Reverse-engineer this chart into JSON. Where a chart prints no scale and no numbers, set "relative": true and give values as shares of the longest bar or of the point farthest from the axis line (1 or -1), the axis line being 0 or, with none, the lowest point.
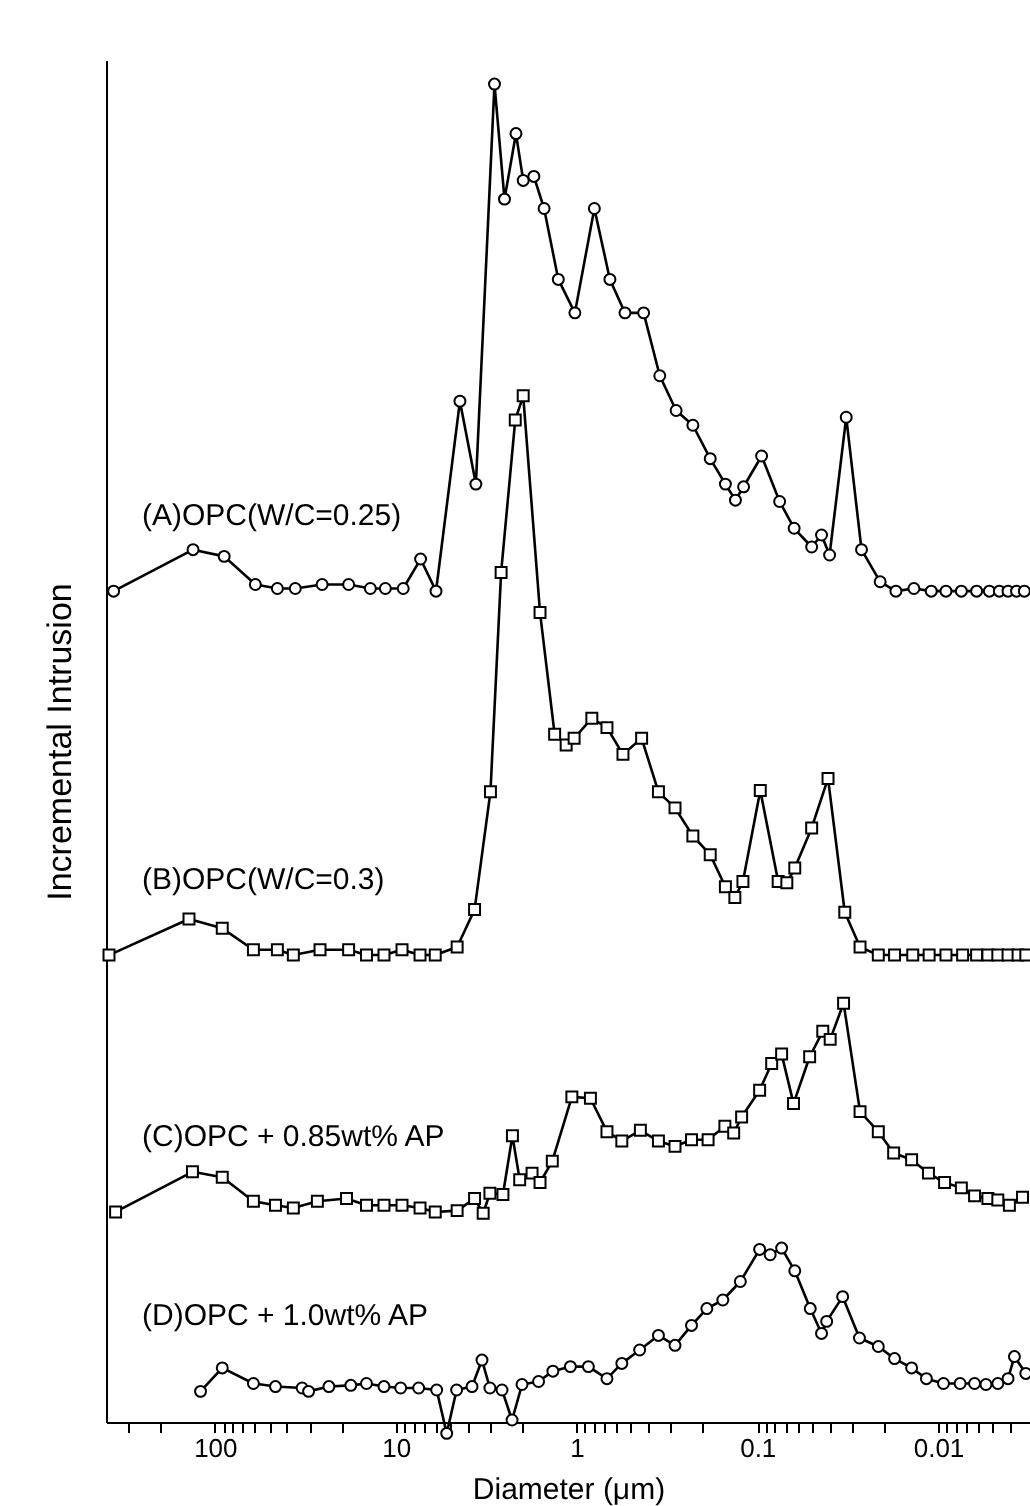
{
  "chart_data": {
    "type": "line",
    "relative": true,
    "xlabel": "Diameter (μm)",
    "ylabel": "Incremental Intrusion",
    "log": "x",
    "grid": false,
    "xlim": [
      400,
      0.0031
    ],
    "xticks": [
      {
        "value": 300,
        "label": null
      },
      {
        "value": 200,
        "label": null
      },
      100,
      {
        "value": 90,
        "label": null
      },
      {
        "value": 80,
        "label": null
      },
      {
        "value": 70,
        "label": null
      },
      {
        "value": 60,
        "label": null
      },
      {
        "value": 50,
        "label": null
      },
      {
        "value": 40,
        "label": null
      },
      {
        "value": 30,
        "label": null
      },
      {
        "value": 20,
        "label": null
      },
      10,
      {
        "value": 9,
        "label": null
      },
      {
        "value": 8,
        "label": null
      },
      {
        "value": 7,
        "label": null
      },
      {
        "value": 6,
        "label": null
      },
      {
        "value": 5,
        "label": null
      },
      {
        "value": 4,
        "label": null
      },
      {
        "value": 3,
        "label": null
      },
      {
        "value": 2,
        "label": null
      },
      1,
      {
        "value": 0.9,
        "label": null
      },
      {
        "value": 0.8,
        "label": null
      },
      {
        "value": 0.7,
        "label": null
      },
      {
        "value": 0.6,
        "label": null
      },
      {
        "value": 0.5,
        "label": null
      },
      {
        "value": 0.4,
        "label": null
      },
      {
        "value": 0.3,
        "label": null
      },
      {
        "value": 0.2,
        "label": null
      },
      0.1,
      {
        "value": 0.09,
        "label": null
      },
      {
        "value": 0.08,
        "label": null
      },
      {
        "value": 0.07,
        "label": null
      },
      {
        "value": 0.06,
        "label": null
      },
      {
        "value": 0.05,
        "label": null
      },
      {
        "value": 0.04,
        "label": null
      },
      {
        "value": 0.03,
        "label": null
      },
      {
        "value": 0.02,
        "label": null
      },
      0.01,
      {
        "value": 0.009,
        "label": null
      },
      {
        "value": 0.008,
        "label": null
      },
      {
        "value": 0.007,
        "label": null
      },
      {
        "value": 0.006,
        "label": null
      },
      {
        "value": 0.005,
        "label": null
      },
      {
        "value": 0.004,
        "label": null
      }
    ],
    "series": [
      {
        "name": "(A)OPC(W/C=0.25)",
        "color": "#000000",
        "marker": "circle",
        "x": [
          363,
          132,
          88.8,
          59.7,
          45.1,
          35.9,
          25.5,
          18.2,
          13.8,
          11.4,
          9.08,
          7.28,
          5.98,
          4.41,
          3.6,
          2.84,
          2.5,
          2.16,
          1.97,
          1.72,
          1.51,
          1.26,
          1.02,
          0.796,
          0.653,
          0.539,
          0.425,
          0.346,
          0.281,
          0.227,
          0.182,
          0.15,
          0.132,
          0.119,
          0.0946,
          0.0752,
          0.0625,
          0.05,
          0.0441,
          0.0398,
          0.0322,
          0.0265,
          0.0209,
          0.0171,
          0.0136,
          0.0109,
          0.00904,
          0.00743,
          0.00612,
          0.0052,
          0.00458,
          0.0041,
          0.00368,
          0.00333
        ],
        "values": [
          0.621,
          0.652,
          0.647,
          0.626,
          0.623,
          0.623,
          0.626,
          0.626,
          0.623,
          0.623,
          0.623,
          0.645,
          0.621,
          0.763,
          0.701,
          1,
          0.914,
          0.963,
          0.928,
          0.931,
          0.907,
          0.854,
          0.829,
          0.907,
          0.854,
          0.829,
          0.829,
          0.782,
          0.756,
          0.745,
          0.72,
          0.701,
          0.689,
          0.699,
          0.722,
          0.688,
          0.668,
          0.654,
          0.663,
          0.648,
          0.751,
          0.652,
          0.628,
          0.621,
          0.623,
          0.621,
          0.621,
          0.621,
          0.621,
          0.621,
          0.621,
          0.621,
          0.621,
          0.621
        ]
      },
      {
        "name": "(B)OPC(W/C=0.3)",
        "color": "#000000",
        "marker": "square",
        "x": [
          385,
          139,
          91,
          61.2,
          45.1,
          36.8,
          26.2,
          18.2,
          14.5,
          11.6,
          9.22,
          7.33,
          6.04,
          4.57,
          3.66,
          2.99,
          2.61,
          2.18,
          1.97,
          1.59,
          1.32,
          1.14,
          1.03,
          0.822,
          0.678,
          0.553,
          0.436,
          0.352,
          0.285,
          0.227,
          0.182,
          0.15,
          0.133,
          0.12,
          0.0962,
          0.0766,
          0.0686,
          0.062,
          0.05,
          0.0406,
          0.0328,
          0.027,
          0.0214,
          0.0174,
          0.0138,
          0.0112,
          0.00904,
          0.00731,
          0.00612,
          0.0053,
          0.00467,
          0.0041,
          0.00361,
          0.00327
        ],
        "values": [
          0.349,
          0.376,
          0.369,
          0.353,
          0.353,
          0.349,
          0.353,
          0.353,
          0.349,
          0.349,
          0.353,
          0.349,
          0.349,
          0.355,
          0.383,
          0.471,
          0.635,
          0.749,
          0.767,
          0.605,
          0.514,
          0.506,
          0.511,
          0.526,
          0.519,
          0.499,
          0.511,
          0.471,
          0.459,
          0.438,
          0.424,
          0.4,
          0.392,
          0.404,
          0.472,
          0.404,
          0.403,
          0.414,
          0.444,
          0.481,
          0.381,
          0.355,
          0.349,
          0.349,
          0.349,
          0.349,
          0.349,
          0.349,
          0.349,
          0.349,
          0.349,
          0.349,
          0.349,
          0.349
        ]
      },
      {
        "name": "(C)OPC + 0.85wt% AP",
        "color": "#000000",
        "marker": "square",
        "x": [
          354,
          133,
          91,
          61.2,
          46.2,
          36.8,
          27.1,
          18.7,
          14.5,
          11.6,
          9.22,
          7.33,
          6.04,
          4.57,
          3.66,
          3.28,
          3.01,
          2.55,
          2.26,
          2.06,
          1.76,
          1.59,
          1.36,
          1.06,
          0.837,
          0.678,
          0.561,
          0.443,
          0.352,
          0.285,
          0.231,
          0.187,
          0.151,
          0.135,
          0.122,
          0.097,
          0.0832,
          0.0733,
          0.063,
          0.0513,
          0.0434,
          0.0395,
          0.0333,
          0.027,
          0.0214,
          0.0176,
          0.014,
          0.0113,
          0.0092,
          0.00743,
          0.00628,
          0.0053,
          0.00467,
          0.00403,
          0.00341
        ],
        "values": [
          0.157,
          0.187,
          0.183,
          0.165,
          0.162,
          0.16,
          0.165,
          0.167,
          0.162,
          0.162,
          0.162,
          0.16,
          0.157,
          0.158,
          0.167,
          0.156,
          0.171,
          0.17,
          0.214,
          0.181,
          0.186,
          0.179,
          0.195,
          0.243,
          0.242,
          0.217,
          0.21,
          0.218,
          0.21,
          0.206,
          0.211,
          0.211,
          0.221,
          0.216,
          0.228,
          0.248,
          0.268,
          0.275,
          0.238,
          0.273,
          0.292,
          0.286,
          0.313,
          0.232,
          0.217,
          0.201,
          0.196,
          0.186,
          0.179,
          0.175,
          0.169,
          0.167,
          0.166,
          0.162,
          0.168
        ]
      },
      {
        "name": "(D)OPC + 1.0wt% AP",
        "color": "#000000",
        "marker": "circle",
        "x": [
          120,
          91,
          61.2,
          46.2,
          32.9,
          30.3,
          23.4,
          17.7,
          14.5,
          11.6,
          9.38,
          7.46,
          5.93,
          5.22,
          4.6,
          3.78,
          3.33,
          3.01,
          2.58,
          2.27,
          2,
          1.62,
          1.35,
          1.08,
          0.859,
          0.678,
          0.561,
          0.447,
          0.352,
          0.285,
          0.231,
          0.19,
          0.155,
          0.124,
          0.097,
          0.0848,
          0.0733,
          0.062,
          0.0509,
          0.0441,
          0.0413,
          0.0337,
          0.0272,
          0.0214,
          0.0174,
          0.014,
          0.0116,
          0.00933,
          0.00755,
          0.00628,
          0.00543,
          0.00467,
          0.0041,
          0.00378,
          0.00327
        ],
        "values": [
          0.0229,
          0.0404,
          0.0288,
          0.0265,
          0.0254,
          0.0229,
          0.0265,
          0.0274,
          0.0288,
          0.0265,
          0.0254,
          0.0254,
          0.0239,
          -0.0085,
          0.0239,
          0.0265,
          0.0463,
          0.0254,
          0.0239,
          0.0015,
          0.028,
          0.0303,
          0.038,
          0.0414,
          0.0414,
          0.0324,
          0.0438,
          0.0538,
          0.0647,
          0.0573,
          0.0722,
          0.0848,
          0.0912,
          0.105,
          0.129,
          0.125,
          0.13,
          0.113,
          0.0848,
          0.0662,
          0.0752,
          0.0937,
          0.0628,
          0.0564,
          0.0474,
          0.0404,
          0.0324,
          0.0288,
          0.0288,
          0.0288,
          0.028,
          0.0288,
          0.0324,
          0.0489,
          0.0363
        ]
      }
    ]
  }
}
